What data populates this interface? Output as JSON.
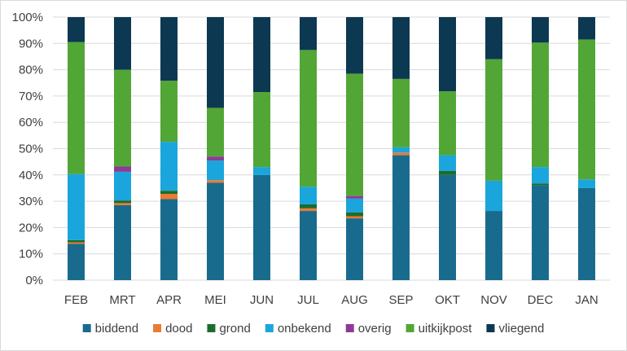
{
  "chart_data": {
    "type": "bar",
    "stacked": true,
    "percent_stacked": true,
    "categories": [
      "FEB",
      "MRT",
      "APR",
      "MEI",
      "JUN",
      "JUL",
      "AUG",
      "SEP",
      "OKT",
      "NOV",
      "DEC",
      "JAN"
    ],
    "series": [
      {
        "name": "biddend",
        "color": "#196b8e",
        "values": [
          13.8,
          28.5,
          30.8,
          37.0,
          40.0,
          26.3,
          23.5,
          47.5,
          40.0,
          26.3,
          36.0,
          35.0
        ]
      },
      {
        "name": "dood",
        "color": "#e97b32",
        "values": [
          0.6,
          0.8,
          2.0,
          1.0,
          0.0,
          1.0,
          0.8,
          1.0,
          0.0,
          0.0,
          0.0,
          0.0
        ]
      },
      {
        "name": "grond",
        "color": "#1d6b2c",
        "values": [
          0.8,
          1.0,
          1.2,
          0.0,
          0.0,
          1.5,
          1.5,
          0.0,
          1.5,
          0.0,
          0.7,
          0.0
        ]
      },
      {
        "name": "onbekend",
        "color": "#1aa6dc",
        "values": [
          25.1,
          10.9,
          18.6,
          7.5,
          3.0,
          6.7,
          5.2,
          2.0,
          6.0,
          11.5,
          6.3,
          3.3
        ]
      },
      {
        "name": "overig",
        "color": "#8e3a96",
        "values": [
          0.0,
          2.0,
          0.0,
          1.5,
          0.0,
          0.0,
          1.0,
          0.0,
          0.0,
          0.0,
          0.0,
          0.0
        ]
      },
      {
        "name": "uitkijkpost",
        "color": "#52a636",
        "values": [
          50.2,
          36.8,
          23.2,
          18.5,
          28.5,
          52.0,
          46.5,
          26.0,
          24.3,
          46.2,
          47.3,
          53.2
        ]
      },
      {
        "name": "vliegend",
        "color": "#0d3851",
        "values": [
          9.5,
          20.0,
          24.2,
          34.5,
          28.5,
          12.5,
          21.5,
          23.5,
          28.2,
          16.0,
          9.7,
          8.5
        ]
      }
    ],
    "ylim": [
      0,
      100
    ],
    "yticks": [
      "0%",
      "10%",
      "20%",
      "30%",
      "40%",
      "50%",
      "60%",
      "70%",
      "80%",
      "90%",
      "100%"
    ],
    "grid": true,
    "legend_position": "bottom",
    "gridline_color": "#d9d9d9",
    "title": "",
    "xlabel": "",
    "ylabel": ""
  }
}
